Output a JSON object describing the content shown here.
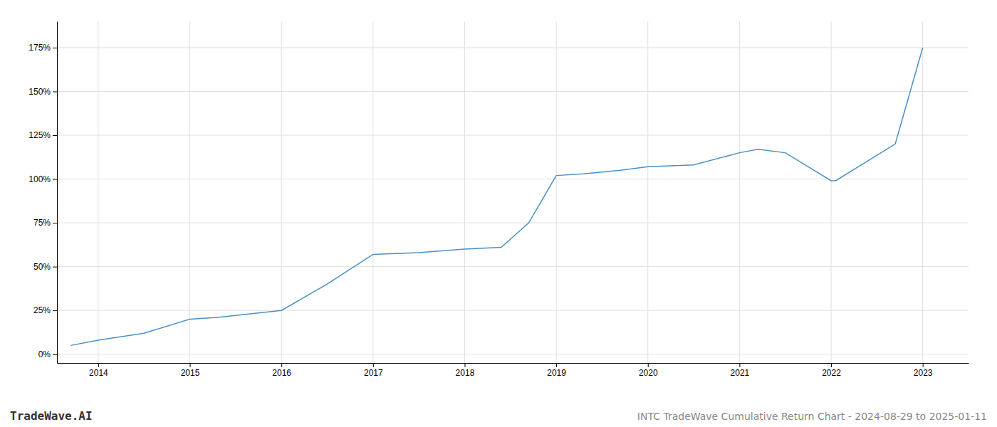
{
  "chart_data": {
    "type": "line",
    "title": "INTC TradeWave Cumulative Return Chart - 2024-08-29 to 2025-01-11",
    "annotations": [
      "TradeWave.AI"
    ],
    "x": [
      2013.7,
      2014.0,
      2014.5,
      2015.0,
      2015.3,
      2016.0,
      2016.5,
      2017.0,
      2017.5,
      2018.0,
      2018.4,
      2018.7,
      2019.0,
      2019.3,
      2019.7,
      2020.0,
      2020.5,
      2021.0,
      2021.2,
      2021.5,
      2022.0,
      2022.05,
      2022.7,
      2023.0
    ],
    "values": [
      5,
      8,
      12,
      20,
      21,
      25,
      40,
      57,
      58,
      60,
      61,
      75,
      102,
      103,
      105,
      107,
      108,
      115,
      117,
      115,
      99,
      99,
      120,
      175
    ],
    "color": "#4a90c4",
    "xlim": [
      2013.55,
      2023.5
    ],
    "xticks": [
      2014,
      2015,
      2016,
      2017,
      2018,
      2019,
      2020,
      2021,
      2022,
      2023
    ],
    "ylim": [
      -5,
      190
    ],
    "yticks": [
      {
        "value": 0,
        "label": "0%"
      },
      {
        "value": 25,
        "label": "25%"
      },
      {
        "value": 50,
        "label": "50%"
      },
      {
        "value": 75,
        "label": "75%"
      },
      {
        "value": 100,
        "label": "100%"
      },
      {
        "value": 125,
        "label": "125%"
      },
      {
        "value": 150,
        "label": "150%"
      },
      {
        "value": 175,
        "label": "175%"
      }
    ],
    "grid": true
  }
}
